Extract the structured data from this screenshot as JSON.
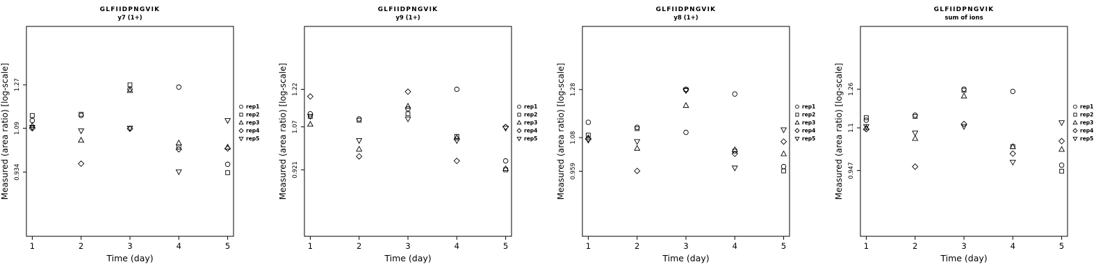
{
  "figure": {
    "peptide": "GLFIIDPNGVIK",
    "ylabel": "Measured (area ratio) [log-scale]",
    "xlabel": "Time (day)",
    "legend": [
      {
        "marker": "circle",
        "label": "rep1"
      },
      {
        "marker": "square",
        "label": "rep2"
      },
      {
        "marker": "triangle-up",
        "label": "rep3"
      },
      {
        "marker": "diamond",
        "label": "rep4"
      },
      {
        "marker": "triangle-down",
        "label": "rep5"
      }
    ]
  },
  "chart_data": [
    {
      "type": "scatter",
      "id": "y7",
      "title": "GLFIIDPNGVIK",
      "subtitle": "y7 (1+)",
      "xlabel": "Time (day)",
      "ylabel": "Measured (area ratio) [log-scale]",
      "yscale": "log",
      "x": [
        1,
        2,
        3,
        4,
        5
      ],
      "xticks": [
        "1",
        "2",
        "3",
        "4",
        "5"
      ],
      "xlim": [
        0.88,
        5.12
      ],
      "ylim": [
        0.745,
        1.56
      ],
      "yticks": [
        0.934,
        1.09,
        1.27
      ],
      "ytick_labels": [
        "0.934",
        "1.09",
        "1.27"
      ],
      "legend_position": "right",
      "grid": false,
      "series": [
        {
          "name": "rep1",
          "marker": "circle",
          "values": [
            1.12,
            1.14,
            1.25,
            1.26,
            0.96
          ]
        },
        {
          "name": "rep2",
          "marker": "square",
          "values": [
            1.14,
            1.145,
            1.27,
            1.02,
            0.932
          ]
        },
        {
          "name": "rep3",
          "marker": "triangle-up",
          "values": [
            1.1,
            1.045,
            1.245,
            1.035,
            1.02
          ]
        },
        {
          "name": "rep4",
          "marker": "diamond",
          "values": [
            1.09,
            0.962,
            1.088,
            1.012,
            1.015
          ]
        },
        {
          "name": "rep5",
          "marker": "triangle-down",
          "values": [
            1.093,
            1.08,
            1.09,
            0.935,
            1.12
          ]
        }
      ]
    },
    {
      "type": "scatter",
      "id": "y9",
      "title": "GLFIIDPNGVIK",
      "subtitle": "y9 (1+)",
      "xlabel": "Time (day)",
      "ylabel": "Measured (area ratio) [log-scale]",
      "yscale": "log",
      "x": [
        1,
        2,
        3,
        4,
        5
      ],
      "xticks": [
        "1",
        "2",
        "3",
        "4",
        "5"
      ],
      "xlim": [
        0.88,
        5.12
      ],
      "ylim": [
        0.73,
        1.52
      ],
      "yticks": [
        0.921,
        1.07,
        1.22
      ],
      "ytick_labels": [
        "0.921",
        "1.07",
        "1.22"
      ],
      "legend_position": "right",
      "grid": false,
      "series": [
        {
          "name": "rep1",
          "marker": "circle",
          "values": [
            1.12,
            1.1,
            1.14,
            1.22,
            0.95
          ]
        },
        {
          "name": "rep2",
          "marker": "square",
          "values": [
            1.11,
            1.095,
            1.12,
            1.035,
            0.921
          ]
        },
        {
          "name": "rep3",
          "marker": "triangle-up",
          "values": [
            1.08,
            0.99,
            1.15,
            1.03,
            0.925
          ]
        },
        {
          "name": "rep4",
          "marker": "diamond",
          "values": [
            1.19,
            0.965,
            1.21,
            0.95,
            1.07
          ]
        },
        {
          "name": "rep5",
          "marker": "triangle-down",
          "values": [
            1.11,
            1.02,
            1.1,
            1.02,
            1.065
          ]
        }
      ]
    },
    {
      "type": "scatter",
      "id": "y8",
      "title": "GLFIIDPNGVIK",
      "subtitle": "y8 (1+)",
      "xlabel": "Time (day)",
      "ylabel": "Measured (area ratio) [log-scale]",
      "yscale": "log",
      "x": [
        1,
        2,
        3,
        4,
        5
      ],
      "xticks": [
        "1",
        "2",
        "3",
        "4",
        "5"
      ],
      "xlim": [
        0.88,
        5.12
      ],
      "ylim": [
        0.762,
        1.6
      ],
      "yticks": [
        0.959,
        1.08,
        1.28
      ],
      "ytick_labels": [
        "0.959",
        "1.08",
        "1.28"
      ],
      "legend_position": "right",
      "grid": false,
      "series": [
        {
          "name": "rep1",
          "marker": "circle",
          "values": [
            1.14,
            1.12,
            1.1,
            1.26,
            0.975
          ]
        },
        {
          "name": "rep2",
          "marker": "square",
          "values": [
            1.09,
            1.115,
            1.28,
            1.03,
            0.96
          ]
        },
        {
          "name": "rep3",
          "marker": "triangle-up",
          "values": [
            1.08,
            1.04,
            1.21,
            1.035,
            1.02
          ]
        },
        {
          "name": "rep4",
          "marker": "diamond",
          "values": [
            1.075,
            0.96,
            1.28,
            1.02,
            1.065
          ]
        },
        {
          "name": "rep5",
          "marker": "triangle-down",
          "values": [
            1.07,
            1.065,
            1.275,
            0.97,
            1.11
          ]
        }
      ]
    },
    {
      "type": "scatter",
      "id": "sum",
      "title": "GLFIIDPNGVIK",
      "subtitle": "sum of ions",
      "xlabel": "Time (day)",
      "ylabel": "Measured (area ratio) [log-scale]",
      "yscale": "log",
      "x": [
        1,
        2,
        3,
        4,
        5
      ],
      "xticks": [
        "1",
        "2",
        "3",
        "4",
        "5"
      ],
      "xlim": [
        0.88,
        5.12
      ],
      "ylim": [
        0.752,
        1.57
      ],
      "yticks": [
        0.947,
        1.1,
        1.26
      ],
      "ytick_labels": [
        "0.947",
        "1.1",
        "1.26"
      ],
      "legend_position": "right",
      "grid": false,
      "series": [
        {
          "name": "rep1",
          "marker": "circle",
          "values": [
            1.13,
            1.15,
            1.26,
            1.25,
            0.965
          ]
        },
        {
          "name": "rep2",
          "marker": "square",
          "values": [
            1.14,
            1.145,
            1.255,
            1.03,
            0.945
          ]
        },
        {
          "name": "rep3",
          "marker": "triangle-up",
          "values": [
            1.1,
            1.06,
            1.23,
            1.03,
            1.02
          ]
        },
        {
          "name": "rep4",
          "marker": "diamond",
          "values": [
            1.095,
            0.96,
            1.115,
            1.005,
            1.05
          ]
        },
        {
          "name": "rep5",
          "marker": "triangle-down",
          "values": [
            1.105,
            1.08,
            1.105,
            0.975,
            1.12
          ]
        }
      ]
    }
  ]
}
